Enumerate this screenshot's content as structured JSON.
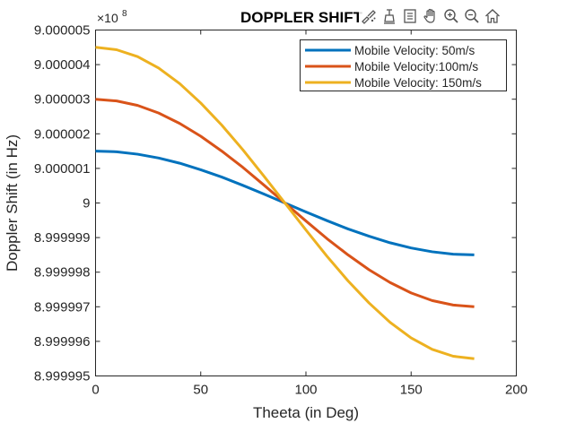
{
  "chart_data": {
    "type": "line",
    "title": "DOPPLER SHIFT",
    "xlabel": "Theeta (in Deg)",
    "ylabel": "Doppler Shift (in Hz)",
    "y_exponent_base": "×10",
    "y_exponent_power": "8",
    "xlim": [
      0,
      200
    ],
    "ylim": [
      8.999995,
      9.000005
    ],
    "x_ticks": [
      0,
      50,
      100,
      150,
      200
    ],
    "x_tick_labels": [
      "0",
      "50",
      "100",
      "150",
      "200"
    ],
    "y_ticks": [
      8.999995,
      8.999996,
      8.999997,
      8.999998,
      8.999999,
      9.0,
      9.000001,
      9.000002,
      9.000003,
      9.000004,
      9.000005
    ],
    "y_tick_labels": [
      "8.999995",
      "8.999996",
      "8.999997",
      "8.999998",
      "8.999999",
      "9",
      "9.000001",
      "9.000002",
      "9.000003",
      "9.000004",
      "9.000005"
    ],
    "grid": false,
    "legend_position": "top-right",
    "x": [
      0,
      10,
      20,
      30,
      40,
      50,
      60,
      70,
      80,
      90,
      100,
      110,
      120,
      130,
      140,
      150,
      160,
      170,
      180
    ],
    "series": [
      {
        "name": "Mobile Velocity: 50m/s",
        "color": "#0072BD",
        "values": [
          9.0000015,
          9.00000148,
          9.00000141,
          9.0000013,
          9.00000115,
          9.00000096,
          9.00000075,
          9.00000051,
          9.00000026,
          9.0,
          8.99999974,
          8.99999949,
          8.99999925,
          8.99999904,
          8.99999885,
          8.9999987,
          8.99999859,
          8.99999852,
          8.9999985
        ]
      },
      {
        "name": "Mobile Velocity:100m/s",
        "color": "#D95319",
        "values": [
          9.000003,
          9.00000295,
          9.00000282,
          9.0000026,
          9.0000023,
          9.00000193,
          9.0000015,
          9.00000103,
          9.00000052,
          9.0,
          8.99999948,
          8.99999897,
          8.9999985,
          8.99999807,
          8.9999977,
          8.9999974,
          8.99999718,
          8.99999705,
          8.999997
        ]
      },
      {
        "name": "Mobile Velocity: 150m/s",
        "color": "#EDB120",
        "values": [
          9.0000045,
          9.00000443,
          9.00000423,
          9.0000039,
          9.00000345,
          9.00000289,
          9.00000225,
          9.00000154,
          9.00000078,
          9.0,
          8.99999922,
          8.99999846,
          8.99999775,
          8.99999711,
          8.99999655,
          8.9999961,
          8.99999577,
          8.99999557,
          8.9999955
        ]
      }
    ]
  },
  "toolbar": {
    "icons": [
      "brush-icon",
      "data-tips-icon",
      "legend-icon",
      "pan-hand-icon",
      "zoom-in-icon",
      "zoom-out-icon",
      "home-icon"
    ]
  }
}
